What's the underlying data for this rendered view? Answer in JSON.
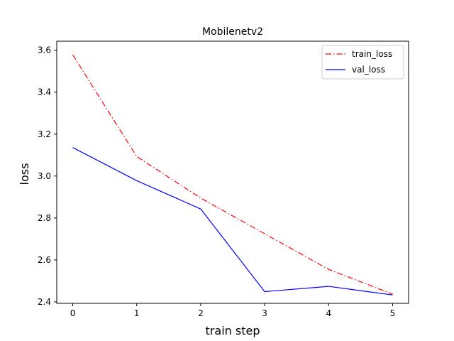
{
  "chart_data": {
    "type": "line",
    "title": "Mobilenetv2",
    "xlabel": "train step",
    "ylabel": "loss",
    "x": [
      0,
      1,
      2,
      3,
      4,
      5
    ],
    "xticks": [
      0,
      1,
      2,
      3,
      4,
      5
    ],
    "yticks": [
      2.4,
      2.6,
      2.8,
      3.0,
      3.2,
      3.4,
      3.6
    ],
    "ytick_labels": [
      "2.4",
      "2.6",
      "2.8",
      "3.0",
      "3.2",
      "3.4",
      "3.6"
    ],
    "xlim": [
      -0.25,
      5.25
    ],
    "ylim": [
      2.393,
      3.643
    ],
    "grid": false,
    "legend_position": "top-right",
    "series": [
      {
        "name": "train_loss",
        "values": [
          3.578,
          3.093,
          2.895,
          2.725,
          2.555,
          2.437
        ],
        "color": "#ff0000",
        "line_style": "dashdot"
      },
      {
        "name": "val_loss",
        "values": [
          3.136,
          2.978,
          2.843,
          2.449,
          2.474,
          2.433
        ],
        "color": "#0000ff",
        "line_style": "solid"
      }
    ]
  }
}
